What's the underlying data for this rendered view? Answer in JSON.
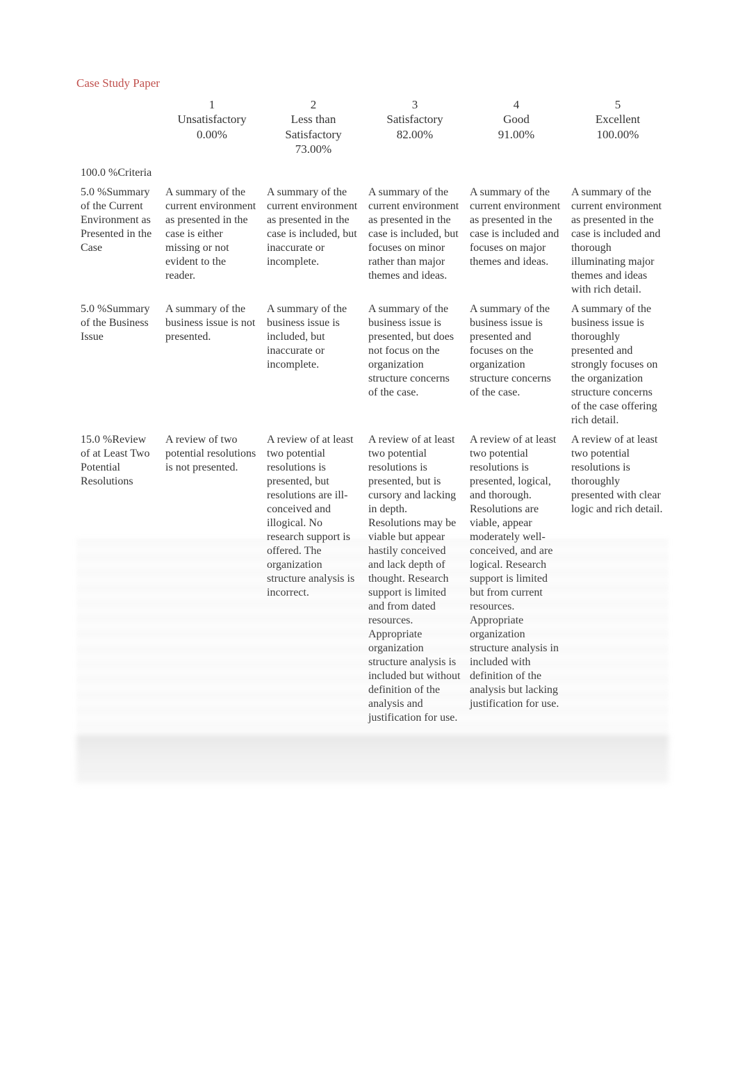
{
  "title": "Case Study Paper",
  "columns": [
    {
      "num": "1",
      "label": "Unsatisfactory",
      "pct": "0.00%"
    },
    {
      "num": "2",
      "label": "Less than Satisfactory",
      "pct": "73.00%"
    },
    {
      "num": "3",
      "label": "Satisfactory",
      "pct": "82.00%"
    },
    {
      "num": "4",
      "label": "Good",
      "pct": "91.00%"
    },
    {
      "num": "5",
      "label": "Excellent",
      "pct": "100.00%"
    }
  ],
  "criteria_header": "100.0 %Criteria",
  "rows": [
    {
      "criteria": "5.0 %Summary of the Current Environment as Presented in the Case",
      "cells": [
        "A summary of the current environment as presented in the case is either missing or not evident to the reader.",
        "A summary of the current environment as presented in the case is included, but inaccurate or incomplete.",
        "A summary of the current environment as presented in the case is included, but focuses on minor rather than major themes and ideas.",
        "A summary of the current environment as presented in the case is included and focuses on major themes and ideas.",
        "A summary of the current environment as presented in the case is included and thorough illuminating major themes and ideas with rich detail."
      ]
    },
    {
      "criteria": "5.0 %Summary of the Business Issue",
      "cells": [
        "A summary of the business issue is not presented.",
        "A summary of the business issue is included, but inaccurate or incomplete.",
        "A summary of the business issue is presented, but does not focus on the organization structure concerns of the case.",
        "A summary of the business issue is presented and focuses on the organization structure concerns of the case.",
        "A summary of the business issue is thoroughly presented and strongly focuses on the organization structure concerns of the case offering rich detail."
      ]
    },
    {
      "criteria": "15.0 %Review of at Least Two Potential Resolutions",
      "cells": [
        "A review of two potential resolutions is not presented.",
        "A review of at least two potential resolutions is presented, but resolutions are ill-conceived and illogical. No research support is offered. The organization structure analysis is incorrect.",
        "A review of at least two potential resolutions is presented, but is cursory and lacking in depth. Resolutions may be viable but appear hastily conceived and lack depth of thought. Research support is limited and from dated resources. Appropriate organization structure analysis is included but without definition of the analysis and justification for use.",
        "A review of at least two potential resolutions is presented, logical, and thorough. Resolutions are viable, appear moderately well-conceived, and are logical. Research support is limited but from current resources. Appropriate organization structure analysis in included with definition of the analysis but lacking justification for use.",
        "A review of at least two potential resolutions is thoroughly presented with clear logic and rich detail."
      ]
    }
  ],
  "colors": {
    "title": "#c0504d",
    "text": "#333333",
    "background": "#ffffff"
  }
}
